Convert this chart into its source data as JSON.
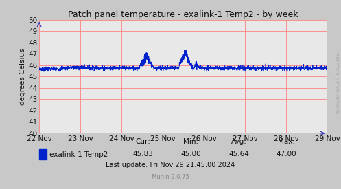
{
  "title": "Patch panel temperature - exalink-1 Temp2 - by week",
  "ylabel": "degrees Celsius",
  "ylim": [
    40,
    50
  ],
  "yticks": [
    40,
    41,
    42,
    43,
    44,
    45,
    46,
    47,
    48,
    49,
    50
  ],
  "bg_color": "#c8c8c8",
  "plot_bg_color": "#e8e8e8",
  "grid_color": "#ff8080",
  "line_color": "#0022cc",
  "legend_label": "exalink-1 Temp2",
  "legend_box_color": "#0022cc",
  "cur": "45.83",
  "min": "45.00",
  "avg": "45.64",
  "max": "47.00",
  "last_update": "Last update: Fri Nov 29 21:45:00 2024",
  "munin_version": "Munin 2.0.75",
  "rrdtool_label": "RRDTOOL / TOBI OETIKER",
  "x_tick_labels": [
    "22 Nov",
    "23 Nov",
    "24 Nov",
    "25 Nov",
    "26 Nov",
    "27 Nov",
    "28 Nov",
    "29 Nov"
  ],
  "mean_temp": 45.75,
  "noise_std": 0.1,
  "n_points": 2016
}
